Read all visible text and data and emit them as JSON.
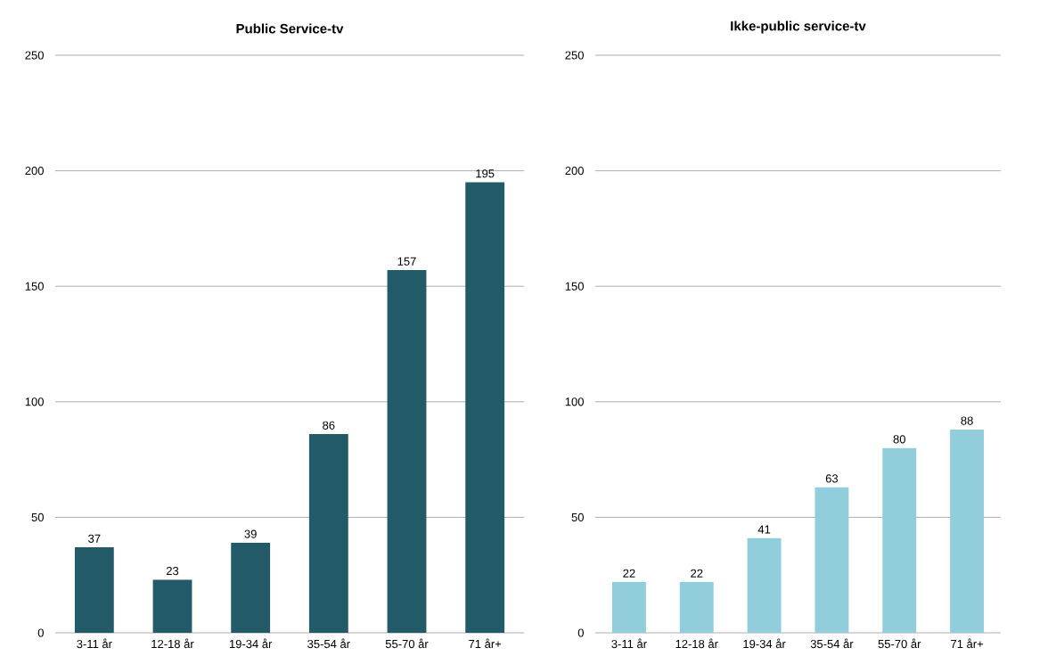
{
  "chart_data": [
    {
      "type": "bar",
      "title": "Public Service-tv",
      "categories": [
        "3-11 år",
        "12-18 år",
        "19-34 år",
        "35-54 år",
        "55-70 år",
        "71 år+"
      ],
      "values": [
        37,
        23,
        39,
        86,
        157,
        195
      ],
      "color": "#235a68",
      "ylim": [
        0,
        250
      ],
      "yticks": [
        0,
        50,
        100,
        150,
        200,
        250
      ],
      "grid": "y",
      "data_labels": true
    },
    {
      "type": "bar",
      "title": "Ikke-public service-tv",
      "categories": [
        "3-11 år",
        "12-18 år",
        "19-34 år",
        "35-54 år",
        "55-70 år",
        "71 år+"
      ],
      "values": [
        22,
        22,
        41,
        63,
        80,
        88
      ],
      "color": "#92cddc",
      "ylim": [
        0,
        250
      ],
      "yticks": [
        0,
        50,
        100,
        150,
        200,
        250
      ],
      "grid": "y",
      "data_labels": true
    }
  ]
}
